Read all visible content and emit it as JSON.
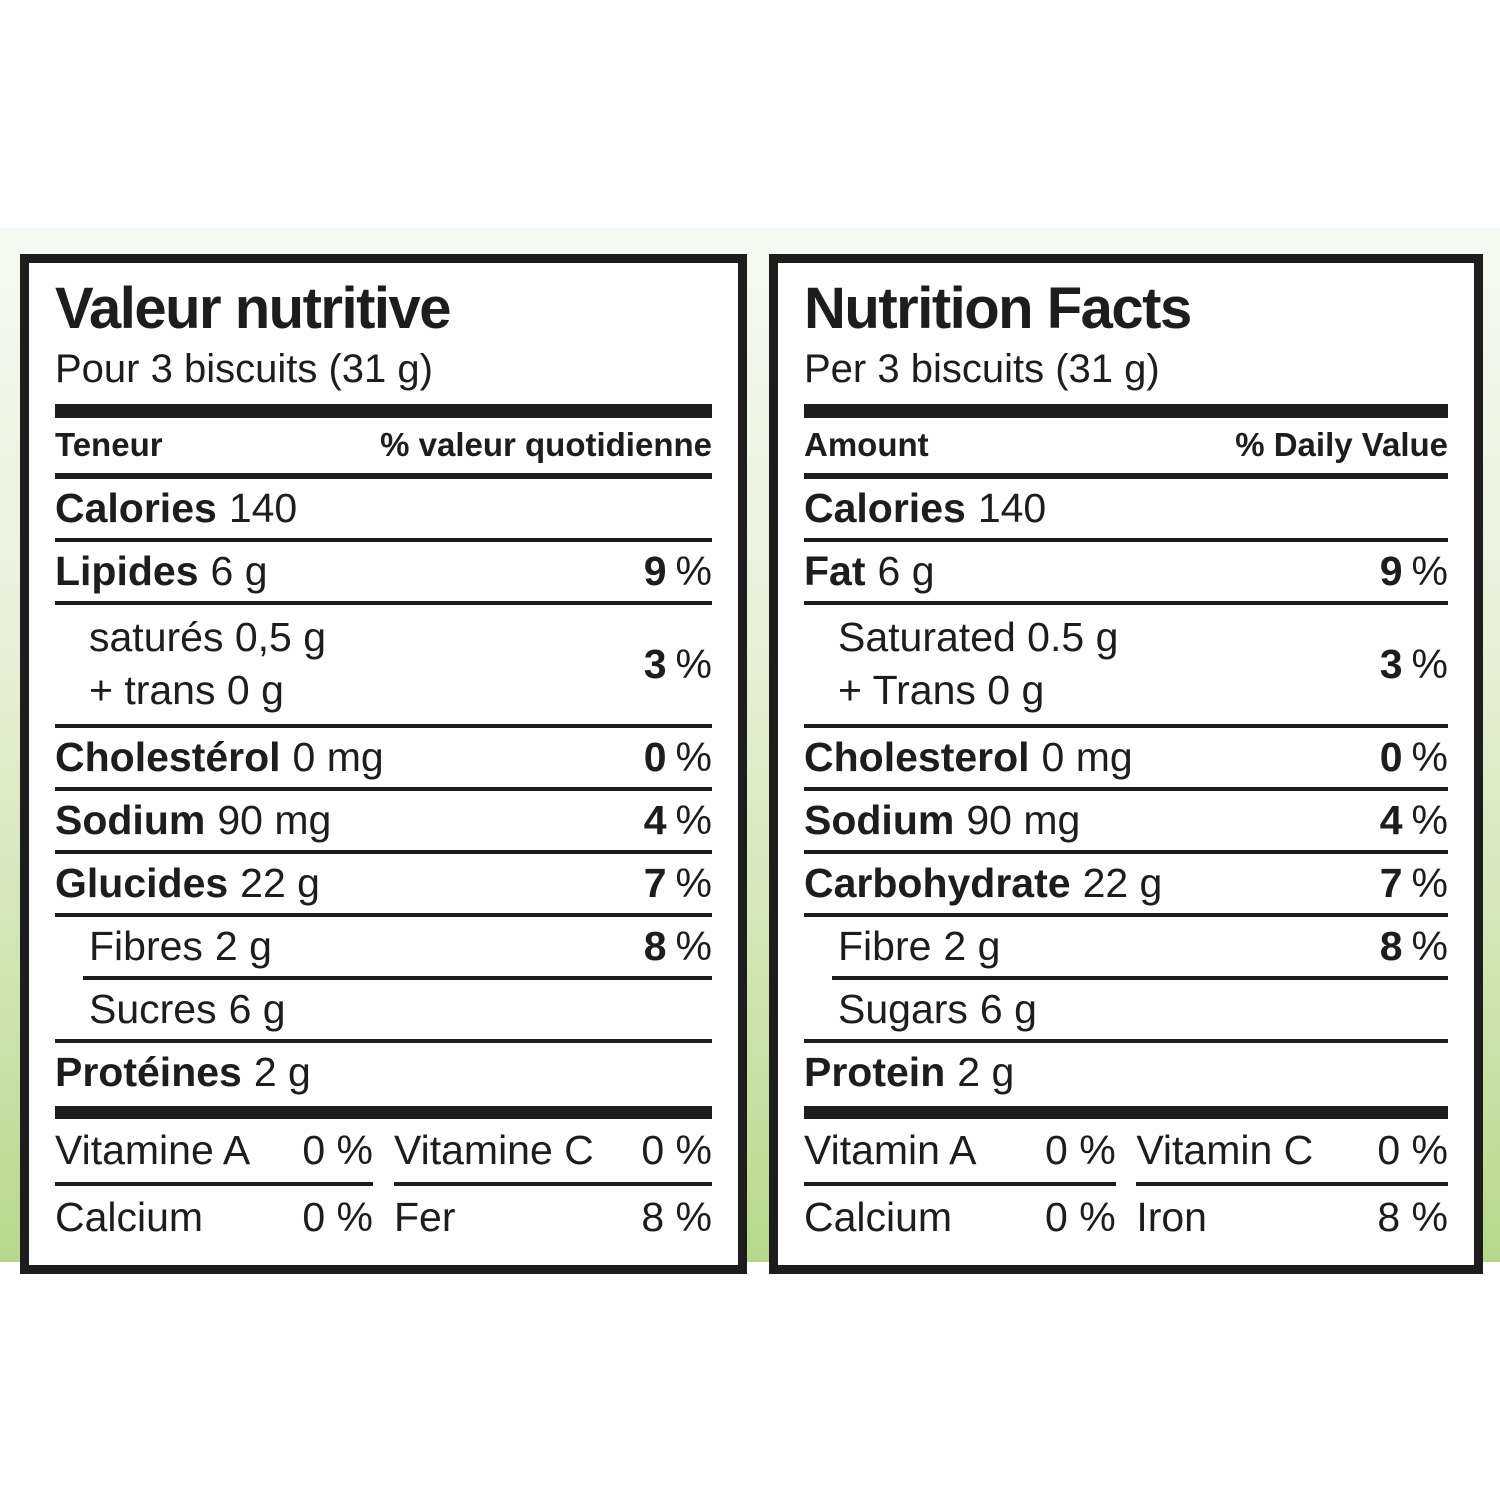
{
  "page": {
    "background_color": "#ffffff",
    "band_top_color": "#f5faf0",
    "band_bottom_color": "#b7d88c",
    "text_color": "#1d1d1b"
  },
  "panels": {
    "fr": {
      "title": "Valeur nutritive",
      "serving": "Pour 3 biscuits (31 g)",
      "header_left": "Teneur",
      "header_right": "% valeur quotidienne",
      "calories": {
        "label": "Calories",
        "value": "140"
      },
      "fat": {
        "name": "Lipides",
        "amount": "6 g",
        "dv": "9",
        "unit": "%"
      },
      "saturated": {
        "line1": "saturés 0,5 g",
        "line2": "+ trans 0 g",
        "dv": "3",
        "unit": "%"
      },
      "cholesterol": {
        "name": "Cholestérol",
        "amount": "0 mg",
        "dv": "0",
        "unit": "%"
      },
      "sodium": {
        "name": "Sodium",
        "amount": "90 mg",
        "dv": "4",
        "unit": "%"
      },
      "carbohydrate": {
        "name": "Glucides",
        "amount": "22 g",
        "dv": "7",
        "unit": "%"
      },
      "fibre": {
        "name": "Fibres",
        "amount": "2 g",
        "dv": "8",
        "unit": "%"
      },
      "sugars": {
        "name": "Sucres",
        "amount": "6 g"
      },
      "protein": {
        "name": "Protéines",
        "amount": "2 g"
      },
      "micronutrients": {
        "vitamin_a": {
          "label": "Vitamine A",
          "value": "0 %"
        },
        "vitamin_c": {
          "label": "Vitamine C",
          "value": "0 %"
        },
        "calcium": {
          "label": "Calcium",
          "value": "0 %"
        },
        "iron": {
          "label": "Fer",
          "value": "8 %"
        }
      }
    },
    "en": {
      "title": "Nutrition Facts",
      "serving": "Per 3 biscuits (31 g)",
      "header_left": "Amount",
      "header_right": "% Daily Value",
      "calories": {
        "label": "Calories",
        "value": "140"
      },
      "fat": {
        "name": "Fat",
        "amount": "6 g",
        "dv": "9",
        "unit": "%"
      },
      "saturated": {
        "line1": "Saturated 0.5 g",
        "line2": "+ Trans 0 g",
        "dv": "3",
        "unit": "%"
      },
      "cholesterol": {
        "name": "Cholesterol",
        "amount": "0 mg",
        "dv": "0",
        "unit": "%"
      },
      "sodium": {
        "name": "Sodium",
        "amount": "90 mg",
        "dv": "4",
        "unit": "%"
      },
      "carbohydrate": {
        "name": "Carbohydrate",
        "amount": "22 g",
        "dv": "7",
        "unit": "%"
      },
      "fibre": {
        "name": "Fibre",
        "amount": "2 g",
        "dv": "8",
        "unit": "%"
      },
      "sugars": {
        "name": "Sugars",
        "amount": "6 g"
      },
      "protein": {
        "name": "Protein",
        "amount": "2 g"
      },
      "micronutrients": {
        "vitamin_a": {
          "label": "Vitamin A",
          "value": "0 %"
        },
        "vitamin_c": {
          "label": "Vitamin C",
          "value": "0 %"
        },
        "calcium": {
          "label": "Calcium",
          "value": "0 %"
        },
        "iron": {
          "label": "Iron",
          "value": "8 %"
        }
      }
    }
  }
}
